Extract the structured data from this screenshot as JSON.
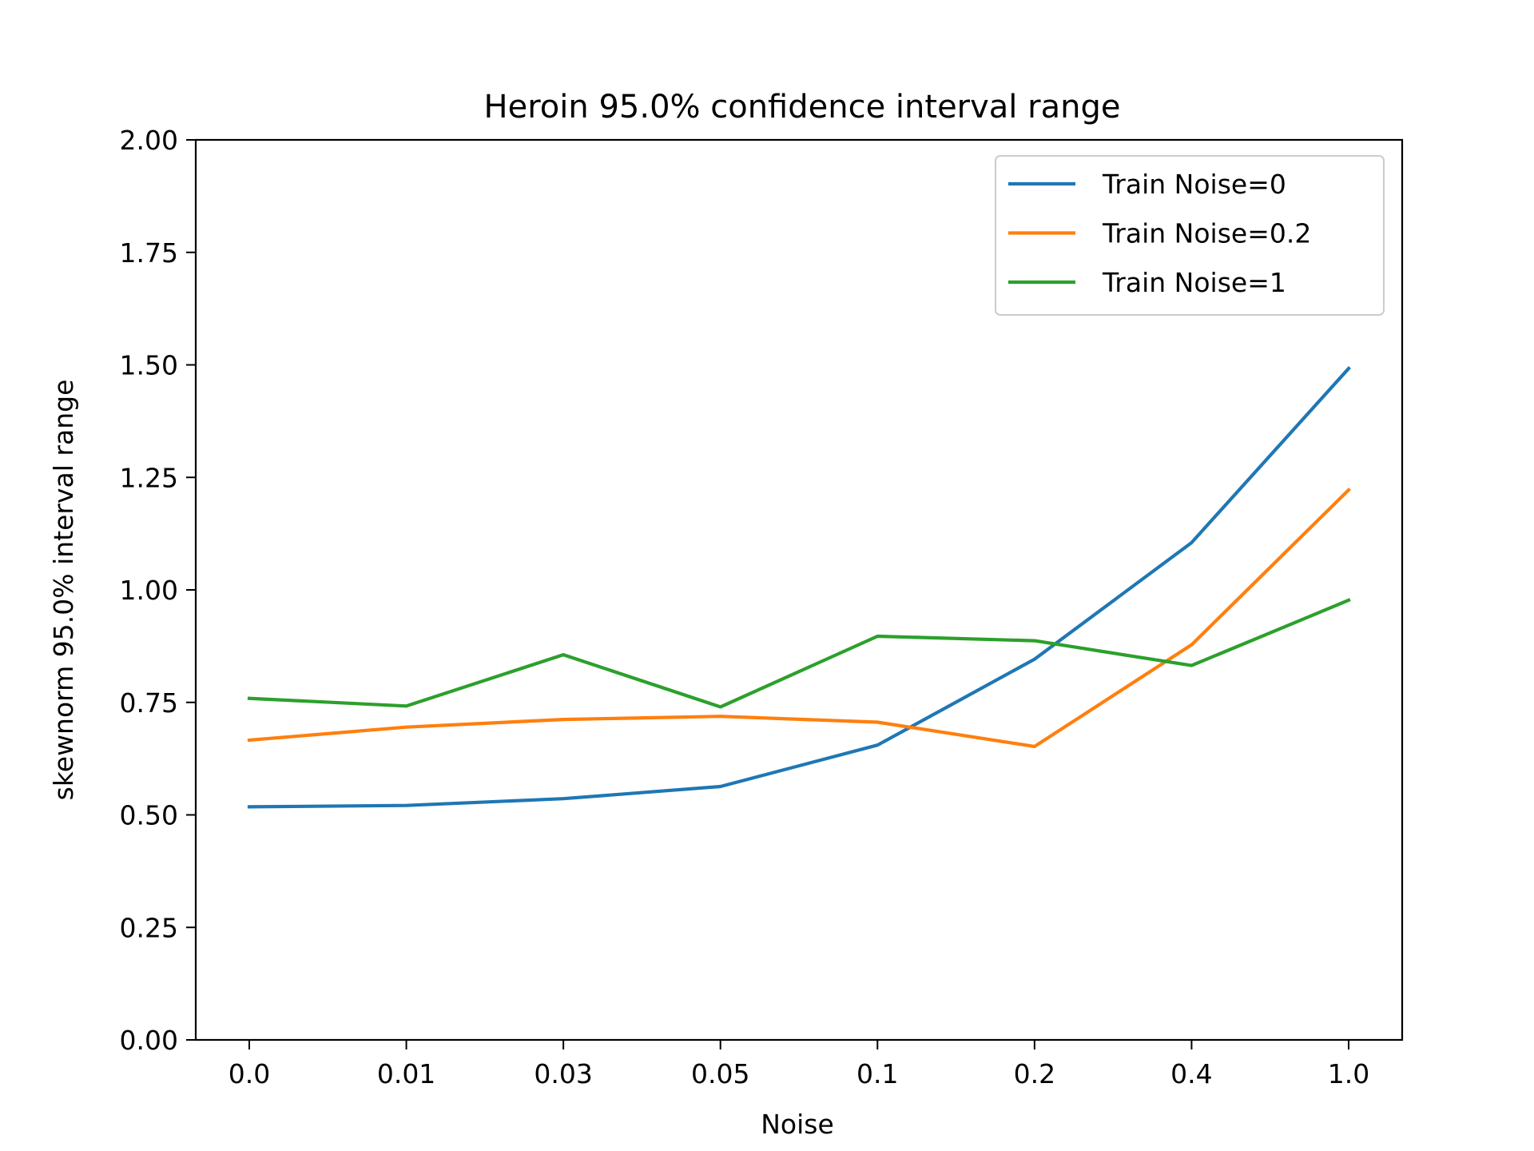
{
  "chart_data": {
    "type": "line",
    "title": "Heroin 95.0% confidence interval range",
    "xlabel": "Noise",
    "ylabel": "skewnorm 95.0% interval range",
    "categories": [
      "0.0",
      "0.01",
      "0.03",
      "0.05",
      "0.1",
      "0.2",
      "0.4",
      "1.0"
    ],
    "ylim": [
      0,
      2
    ],
    "yticks": [
      "0.00",
      "0.25",
      "0.50",
      "0.75",
      "1.00",
      "1.25",
      "1.50",
      "1.75",
      "2.00"
    ],
    "grid": false,
    "legend_position": "top-right",
    "series": [
      {
        "name": "Train Noise=0",
        "color": "#1f77b4",
        "values": [
          0.518,
          0.521,
          0.536,
          0.563,
          0.655,
          0.846,
          1.105,
          1.492
        ]
      },
      {
        "name": "Train Noise=0.2",
        "color": "#ff7f0e",
        "values": [
          0.666,
          0.695,
          0.712,
          0.719,
          0.706,
          0.652,
          0.878,
          1.222
        ]
      },
      {
        "name": "Train Noise=1",
        "color": "#2ca02c",
        "values": [
          0.759,
          0.742,
          0.856,
          0.74,
          0.897,
          0.887,
          0.832,
          0.977
        ]
      }
    ]
  }
}
